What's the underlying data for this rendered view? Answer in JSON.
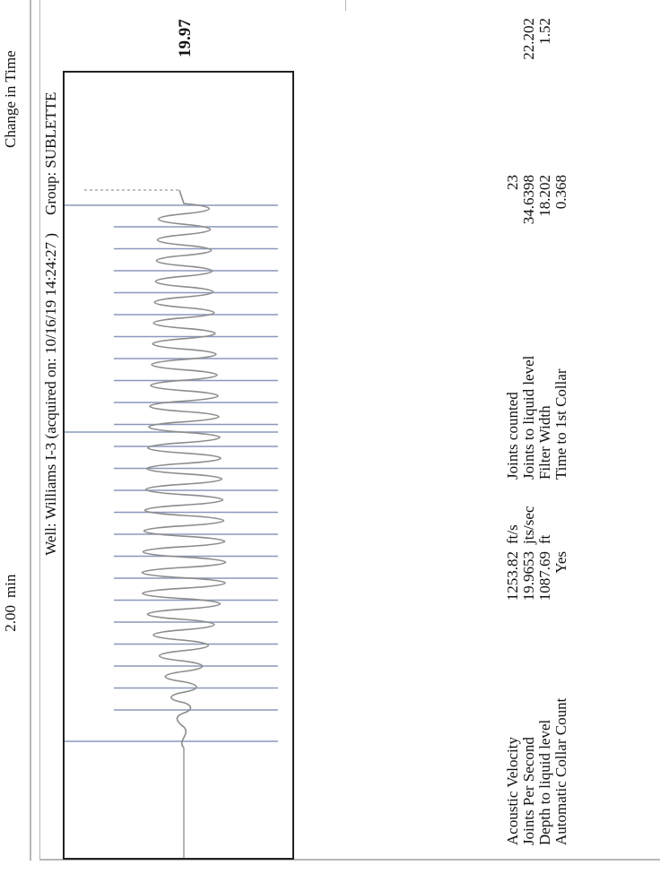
{
  "header": {
    "change_in_time_label": "Change in Time",
    "change_in_time_value": "2.00",
    "change_in_time_unit": "min"
  },
  "plot": {
    "group_label": "Group: SUBLETTE",
    "well_label": "Well: Williams I-3 (acquired on: 10/16/19 14:24:27 )",
    "peak_value": "19.97"
  },
  "stats_left": [
    {
      "label": "Acoustic Velocity",
      "value": "1253.82",
      "unit": "ft/s"
    },
    {
      "label": "Joints Per Second",
      "value": "19.9653",
      "unit": "jts/sec"
    },
    {
      "label": "Depth to liquid level",
      "value": "1087.69",
      "unit": "ft"
    },
    {
      "label": "Automatic Collar Count",
      "value": "Yes",
      "unit": ""
    }
  ],
  "stats_right": [
    {
      "label": "Joints counted",
      "value": "23",
      "extra": ""
    },
    {
      "label": "Joints to liquid level",
      "value": "34.6398",
      "extra": "22.202"
    },
    {
      "label": "Filter Width",
      "value": "18.202",
      "extra": "1.52"
    },
    {
      "label": "Time to 1st Collar",
      "value": "0.368",
      "extra": ""
    }
  ],
  "colors": {
    "trace": "#8c8c8c",
    "markers": "#8a98bc",
    "border": "#222222"
  }
}
